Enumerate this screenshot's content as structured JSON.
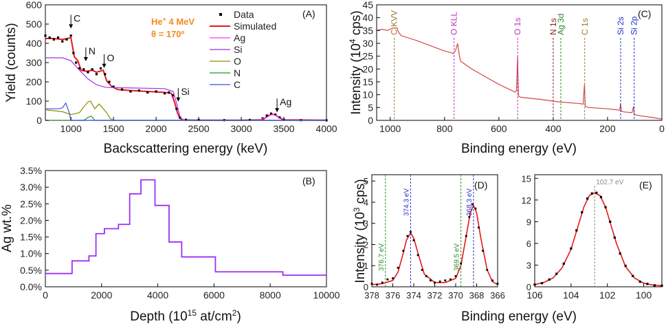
{
  "chart_data": [
    {
      "id": "A",
      "type": "line",
      "panel_label": "(A)",
      "xlabel": "Backscattering energy (keV)",
      "ylabel": "Yield (counts)",
      "xlim": [
        700,
        4000
      ],
      "ylim": [
        0,
        600
      ],
      "xticks": [
        "1000",
        "1500",
        "2000",
        "2500",
        "3000",
        "3500",
        "4000"
      ],
      "yticks": [
        "0",
        "100",
        "200",
        "300",
        "400",
        "500",
        "600"
      ],
      "beam_line1": "He",
      "beam_sup": "+",
      "beam_line1b": " 4 MeV",
      "beam_line2": "θ = 170º",
      "beam_color": "#f5891f",
      "legend": [
        {
          "label": "Data",
          "color": "#000000",
          "style": "dot"
        },
        {
          "label": "Simulated",
          "color": "#e8161b",
          "style": "line"
        },
        {
          "label": "Ag",
          "color": "#ff33ff",
          "style": "line"
        },
        {
          "label": "Si",
          "color": "#9b2ff5",
          "style": "line"
        },
        {
          "label": "O",
          "color": "#8c8c00",
          "style": "line"
        },
        {
          "label": "N",
          "color": "#229922",
          "style": "line"
        },
        {
          "label": "C",
          "color": "#3355dd",
          "style": "line"
        }
      ],
      "markers": [
        {
          "label": "C",
          "x": 1000,
          "y": 470
        },
        {
          "label": "N",
          "x": 1175,
          "y": 300
        },
        {
          "label": "O",
          "x": 1390,
          "y": 265
        },
        {
          "label": "Si",
          "x": 2260,
          "y": 90
        },
        {
          "label": "Ag",
          "x": 3420,
          "y": 35
        }
      ],
      "series": [
        {
          "name": "Simulated",
          "color": "#e8161b",
          "x": [
            700,
            800,
            900,
            960,
            1000,
            1040,
            1080,
            1120,
            1180,
            1250,
            1300,
            1380,
            1420,
            1480,
            1550,
            1700,
            1900,
            2100,
            2180,
            2220,
            2250,
            2280,
            2320,
            2500,
            3000,
            3250,
            3320,
            3360,
            3400,
            3440,
            3500,
            4000
          ],
          "y": [
            425,
            425,
            420,
            425,
            430,
            330,
            310,
            260,
            255,
            260,
            250,
            260,
            205,
            175,
            160,
            155,
            150,
            145,
            140,
            90,
            40,
            10,
            2,
            1,
            1,
            3,
            25,
            32,
            28,
            15,
            3,
            1
          ]
        },
        {
          "name": "Data",
          "color": "#000000",
          "x": [
            700,
            750,
            800,
            850,
            900,
            950,
            1000,
            1030,
            1060,
            1100,
            1150,
            1200,
            1250,
            1300,
            1350,
            1400,
            1450,
            1500,
            1600,
            1700,
            1800,
            1900,
            2000,
            2100,
            2150,
            2200,
            2240,
            2280,
            2350,
            2500,
            2800,
            3100,
            3250,
            3300,
            3350,
            3400,
            3450,
            3500,
            3700,
            4000
          ],
          "y": [
            440,
            430,
            420,
            430,
            410,
            420,
            440,
            350,
            300,
            270,
            265,
            250,
            265,
            240,
            270,
            240,
            200,
            175,
            160,
            150,
            155,
            145,
            150,
            140,
            145,
            130,
            60,
            15,
            3,
            2,
            1,
            2,
            10,
            25,
            35,
            30,
            15,
            3,
            1,
            0
          ]
        },
        {
          "name": "Ag",
          "color": "#ff33ff",
          "x": [
            700,
            3200,
            3300,
            3340,
            3380,
            3420,
            3480,
            4000
          ],
          "y": [
            0,
            0,
            15,
            28,
            30,
            20,
            2,
            0
          ]
        },
        {
          "name": "Si",
          "color": "#9b2ff5",
          "x": [
            700,
            900,
            1000,
            1100,
            1200,
            1300,
            1400,
            1500,
            2100,
            2200,
            2240,
            2280,
            2320,
            4000
          ],
          "y": [
            325,
            325,
            310,
            260,
            215,
            185,
            172,
            170,
            165,
            150,
            90,
            20,
            0,
            0
          ]
        },
        {
          "name": "O",
          "color": "#8c8c00",
          "x": [
            700,
            900,
            1000,
            1100,
            1150,
            1200,
            1230,
            1280,
            1330,
            1380,
            1420,
            1460,
            1500,
            4000
          ],
          "y": [
            55,
            45,
            30,
            40,
            70,
            95,
            100,
            60,
            85,
            60,
            40,
            10,
            0,
            0
          ]
        },
        {
          "name": "N",
          "color": "#229922",
          "x": [
            700,
            1150,
            1200,
            1240,
            1280,
            4000
          ],
          "y": [
            0,
            0,
            15,
            22,
            0,
            0
          ]
        },
        {
          "name": "C",
          "color": "#3355dd",
          "x": [
            700,
            850,
            900,
            940,
            980,
            1000,
            4000
          ],
          "y": [
            60,
            60,
            65,
            90,
            40,
            0,
            0
          ]
        }
      ]
    },
    {
      "id": "B",
      "type": "line",
      "panel_label": "(B)",
      "xlabel_main": "Depth (10",
      "xlabel_sup": "15",
      "xlabel_tail": " at/cm",
      "xlabel_sup2": "2",
      "xlabel_end": ")",
      "ylabel": "Ag wt.%",
      "xlim": [
        0,
        10000
      ],
      "ylim": [
        0,
        3.5
      ],
      "xticks": [
        "0",
        "2000",
        "4000",
        "6000",
        "8000",
        "10000"
      ],
      "yticks": [
        "0.0%",
        "0.5%",
        "1.0%",
        "1.5%",
        "2.0%",
        "2.5%",
        "3.0%",
        "3.5%"
      ],
      "series": [
        {
          "name": "Ag wt.%",
          "color": "#9b2ff5",
          "step_x": [
            0,
            950,
            1550,
            1800,
            2100,
            2600,
            3000,
            3400,
            3900,
            4400,
            4850,
            6050,
            8450,
            10000
          ],
          "step_y": [
            0.4,
            0.78,
            0.93,
            1.6,
            1.75,
            1.88,
            2.8,
            3.22,
            2.45,
            1.35,
            0.9,
            0.45,
            0.35,
            0.35
          ]
        }
      ]
    },
    {
      "id": "C",
      "type": "line",
      "panel_label": "(C)",
      "xlabel": "Binding energy (eV)",
      "ylabel_main": "Intensity (10",
      "ylabel_sup": "4",
      "ylabel_tail": " cps)",
      "xlim": [
        1050,
        0
      ],
      "ylim": [
        0,
        45
      ],
      "xticks": [
        "1000",
        "800",
        "600",
        "400",
        "200",
        "0"
      ],
      "yticks": [
        "0",
        "5",
        "10",
        "15",
        "20",
        "25",
        "30",
        "35",
        "40",
        "45"
      ],
      "annotations": [
        {
          "label": "C KVV",
          "x": 985,
          "color": "#a0782a"
        },
        {
          "label": "O KLL",
          "x": 765,
          "color": "#c030c0"
        },
        {
          "label": "O 1s",
          "x": 531,
          "color": "#c030c0"
        },
        {
          "label": "N 1s",
          "x": 400,
          "color": "#8a1a1a"
        },
        {
          "label": "Ag 3d",
          "x": 372,
          "color": "#2a8a2a"
        },
        {
          "label": "C 1s",
          "x": 284,
          "color": "#a0782a"
        },
        {
          "label": "Si 2s",
          "x": 152,
          "color": "#2233cc"
        },
        {
          "label": "Si 2p",
          "x": 102,
          "color": "#2233cc"
        }
      ],
      "series": [
        {
          "name": "Survey",
          "color": "#d64545",
          "x": [
            1050,
            1030,
            1010,
            990,
            975,
            970,
            960,
            900,
            850,
            800,
            780,
            770,
            760,
            752,
            745,
            740,
            700,
            650,
            600,
            560,
            540,
            535,
            531,
            528,
            520,
            450,
            400,
            380,
            300,
            290,
            285,
            282,
            270,
            200,
            155,
            152,
            149,
            140,
            110,
            104,
            102,
            99,
            80,
            40,
            0
          ],
          "y": [
            35,
            35.5,
            35,
            36,
            36,
            34.5,
            33,
            31,
            29,
            27,
            26.5,
            26,
            27,
            30,
            25,
            23,
            20,
            17,
            14,
            12,
            11,
            11.5,
            25,
            9.5,
            9,
            8.2,
            7.5,
            7.2,
            6.5,
            6.3,
            14,
            5.5,
            5,
            4.5,
            4,
            6.5,
            3.6,
            3.3,
            3,
            5.5,
            2.5,
            2.2,
            1.8,
            1.2,
            0.5
          ]
        }
      ]
    },
    {
      "id": "D",
      "type": "line",
      "panel_label": "(D)",
      "xlabel": "Binding energy (eV)",
      "ylabel_main": "Intensity (10",
      "ylabel_sup": "3",
      "ylabel_tail": " cps)",
      "xlim": [
        378,
        366
      ],
      "ylim": [
        0,
        5.3
      ],
      "xticks": [
        "378",
        "376",
        "374",
        "372",
        "370",
        "368",
        "366"
      ],
      "yticks": [
        "0",
        "1",
        "2",
        "3",
        "4",
        "5"
      ],
      "peak_labels": [
        {
          "label": "376.7 eV",
          "x": 376.7,
          "color": "#2a8a2a"
        },
        {
          "label": "374.3 eV",
          "x": 374.3,
          "color": "#2233cc"
        },
        {
          "label": "369.5 eV",
          "x": 369.5,
          "color": "#2a8a2a"
        },
        {
          "label": "368.3 eV",
          "x": 368.3,
          "color": "#2233cc"
        }
      ],
      "series": [
        {
          "name": "Fit",
          "color": "#e8161b",
          "x": [
            378,
            377,
            376,
            375.5,
            375,
            374.7,
            374.3,
            374,
            373.6,
            373,
            372,
            371,
            370,
            369.5,
            369,
            368.6,
            368.3,
            368,
            367.6,
            367,
            366.5,
            366
          ],
          "y": [
            0.1,
            0.15,
            0.3,
            0.7,
            1.6,
            2.2,
            2.55,
            2.3,
            1.6,
            0.6,
            0.2,
            0.2,
            0.4,
            1.0,
            2.4,
            3.5,
            3.85,
            3.5,
            2.3,
            0.8,
            0.25,
            0.1
          ]
        },
        {
          "name": "Data",
          "color": "#000000",
          "x": [
            378,
            377.5,
            377,
            376.5,
            376,
            375.5,
            375,
            374.6,
            374.3,
            374,
            373.6,
            373.2,
            372.8,
            372.4,
            372,
            371.5,
            371,
            370.5,
            370,
            369.5,
            369,
            368.7,
            368.4,
            368.1,
            367.8,
            367.4,
            367,
            366.5,
            366
          ],
          "y": [
            0.15,
            0.1,
            0.2,
            0.35,
            0.4,
            0.9,
            1.7,
            2.4,
            2.6,
            2.2,
            1.5,
            0.8,
            0.5,
            0.3,
            0.2,
            0.25,
            0.3,
            0.35,
            0.5,
            1.1,
            2.4,
            3.3,
            3.9,
            3.7,
            2.8,
            1.7,
            0.8,
            0.3,
            0.15
          ]
        }
      ]
    },
    {
      "id": "E",
      "type": "line",
      "panel_label": "(E)",
      "xlabel": "Binding energy (eV)",
      "xlim": [
        106,
        99
      ],
      "ylim": [
        0,
        15.5
      ],
      "xticks": [
        "106",
        "104",
        "102",
        "100"
      ],
      "yticks": [
        "0",
        "3",
        "6",
        "9",
        "12",
        "15"
      ],
      "peak_labels": [
        {
          "label": "102.7 eV",
          "x": 102.7,
          "color": "#888888"
        }
      ],
      "series": [
        {
          "name": "Fit",
          "color": "#e8161b",
          "x": [
            106,
            105.5,
            105,
            104.5,
            104,
            103.6,
            103.3,
            103,
            102.7,
            102.4,
            102.1,
            101.8,
            101.5,
            101,
            100.5,
            100,
            99.5,
            99
          ],
          "y": [
            0.3,
            0.6,
            1.2,
            2.6,
            5.2,
            8.5,
            11,
            12.6,
            13,
            12.6,
            11,
            8.5,
            6,
            2.8,
            1.2,
            0.5,
            0.25,
            0.15
          ]
        },
        {
          "name": "Data",
          "color": "#000000",
          "x": [
            106,
            105.6,
            105.2,
            104.8,
            104.4,
            104,
            103.7,
            103.4,
            103.1,
            102.85,
            102.6,
            102.35,
            102.1,
            101.85,
            101.6,
            101.3,
            101,
            100.6,
            100.2,
            99.8,
            99.4,
            99
          ],
          "y": [
            0.3,
            0.5,
            1.0,
            1.8,
            3.2,
            5.3,
            7.8,
            10.3,
            12.2,
            12.9,
            13,
            12.4,
            11,
            9,
            6.8,
            4.6,
            2.9,
            1.5,
            0.7,
            0.4,
            0.2,
            0.15
          ]
        }
      ]
    }
  ]
}
